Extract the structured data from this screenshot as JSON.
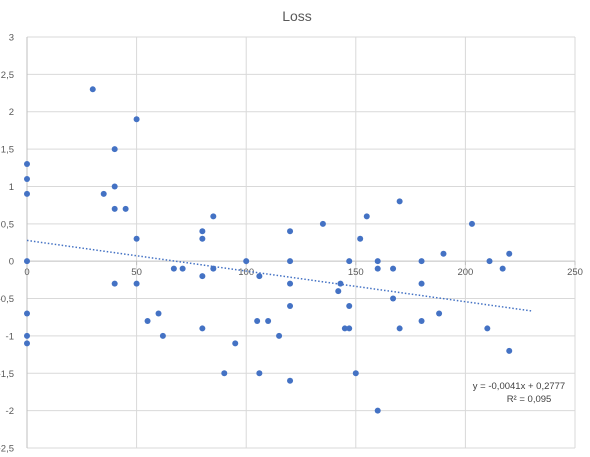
{
  "chart_data": {
    "type": "scatter",
    "title": "Loss",
    "xlabel": "",
    "ylabel": "",
    "xlim": [
      0,
      250
    ],
    "ylim": [
      -2.5,
      3
    ],
    "xticks": [
      "0",
      "50",
      "100",
      "150",
      "200",
      "250"
    ],
    "yticks": [
      "3",
      "2,5",
      "2",
      "1,5",
      "1",
      "0,5",
      "0",
      "-0,5",
      "-1",
      "-1,5",
      "-2",
      "-2,5"
    ],
    "grid": true,
    "color": "#4472C4",
    "trendline": {
      "type": "linear",
      "slope": -0.0041,
      "intercept": 0.2777,
      "x_range": [
        0,
        230
      ],
      "equation": "y = -0,0041x + 0,2777",
      "r_squared": "R² = 0,095"
    },
    "points": [
      [
        0,
        1.3
      ],
      [
        0,
        1.1
      ],
      [
        0,
        0.9
      ],
      [
        0,
        0.0
      ],
      [
        0,
        -0.7
      ],
      [
        0,
        -1.0
      ],
      [
        0,
        -1.1
      ],
      [
        30,
        2.3
      ],
      [
        35,
        0.9
      ],
      [
        40,
        1.5
      ],
      [
        40,
        1.0
      ],
      [
        40,
        0.7
      ],
      [
        40,
        -0.3
      ],
      [
        45,
        0.7
      ],
      [
        50,
        1.9
      ],
      [
        50,
        0.3
      ],
      [
        50,
        -0.3
      ],
      [
        55,
        -0.8
      ],
      [
        60,
        -0.7
      ],
      [
        62,
        -1.0
      ],
      [
        67,
        -0.1
      ],
      [
        71,
        -0.1
      ],
      [
        80,
        0.4
      ],
      [
        80,
        0.3
      ],
      [
        80,
        -0.2
      ],
      [
        80,
        -0.9
      ],
      [
        85,
        0.6
      ],
      [
        85,
        -0.1
      ],
      [
        90,
        -1.5
      ],
      [
        95,
        -1.1
      ],
      [
        100,
        0.0
      ],
      [
        105,
        -0.8
      ],
      [
        106,
        -0.2
      ],
      [
        106,
        -1.5
      ],
      [
        110,
        -0.8
      ],
      [
        115,
        -1.0
      ],
      [
        120,
        0.4
      ],
      [
        120,
        0.0
      ],
      [
        120,
        -0.3
      ],
      [
        120,
        -0.6
      ],
      [
        120,
        -1.6
      ],
      [
        135,
        0.5
      ],
      [
        142,
        -0.4
      ],
      [
        143,
        -0.3
      ],
      [
        145,
        -0.9
      ],
      [
        147,
        0.0
      ],
      [
        147,
        -0.6
      ],
      [
        147,
        -0.9
      ],
      [
        150,
        -1.5
      ],
      [
        152,
        0.3
      ],
      [
        155,
        0.6
      ],
      [
        160,
        0.0
      ],
      [
        160,
        -0.1
      ],
      [
        160,
        -2.0
      ],
      [
        167,
        -0.1
      ],
      [
        167,
        -0.5
      ],
      [
        170,
        0.8
      ],
      [
        170,
        -0.9
      ],
      [
        180,
        0.0
      ],
      [
        180,
        -0.3
      ],
      [
        180,
        -0.8
      ],
      [
        188,
        -0.7
      ],
      [
        190,
        0.1
      ],
      [
        203,
        0.5
      ],
      [
        210,
        -0.9
      ],
      [
        211,
        0.0
      ],
      [
        217,
        -0.1
      ],
      [
        220,
        0.1
      ],
      [
        220,
        -1.2
      ]
    ]
  }
}
